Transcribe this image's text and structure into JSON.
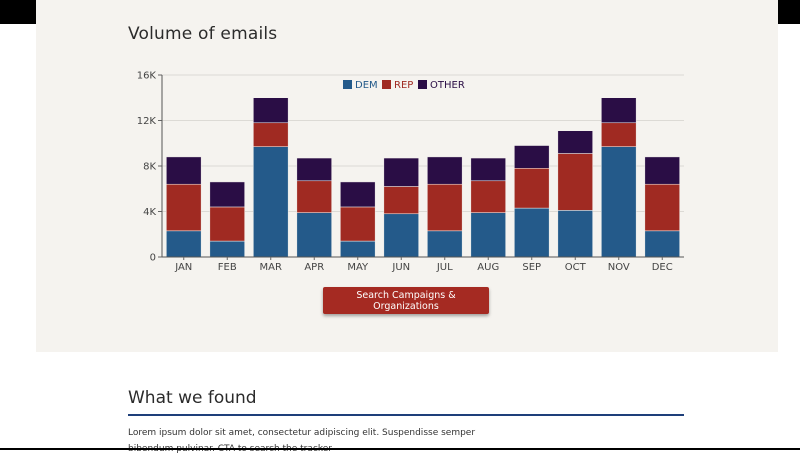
{
  "header": {
    "title": "Volume of emails"
  },
  "cta": {
    "label": "Search Campaigns & Organizations"
  },
  "section": {
    "title": "What we found",
    "body": "Lorem ipsum dolor sit amet, consectetur adipiscing elit. Suspendisse semper bibendum pulvinar. CTA to search the tracker"
  },
  "colors": {
    "dem": "#245a8a",
    "rep": "#a02a22",
    "other": "#2a0d45"
  },
  "chart_data": {
    "type": "bar",
    "stacked": true,
    "title": "Volume of emails",
    "categories": [
      "JAN",
      "FEB",
      "MAR",
      "APR",
      "MAY",
      "JUN",
      "JUL",
      "AUG",
      "SEP",
      "OCT",
      "NOV",
      "DEC"
    ],
    "series": [
      {
        "name": "DEM",
        "color": "#245a8a",
        "values": [
          2300,
          1400,
          9700,
          3900,
          1400,
          3800,
          2300,
          3900,
          4300,
          4100,
          9700,
          2300
        ]
      },
      {
        "name": "REP",
        "color": "#a02a22",
        "values": [
          4100,
          3000,
          2100,
          2800,
          3000,
          2400,
          4100,
          2800,
          3500,
          5000,
          2100,
          4100
        ]
      },
      {
        "name": "OTHER",
        "color": "#2a0d45",
        "values": [
          2400,
          2200,
          2200,
          2000,
          2200,
          2500,
          2400,
          2000,
          2000,
          2000,
          2200,
          2400
        ]
      }
    ],
    "yticks": [
      "0",
      "4K",
      "8K",
      "12K",
      "16K"
    ],
    "ytick_values": [
      0,
      4000,
      8000,
      12000,
      16000
    ],
    "ylim": [
      0,
      16000
    ],
    "grid": true,
    "legend": "top-center"
  }
}
